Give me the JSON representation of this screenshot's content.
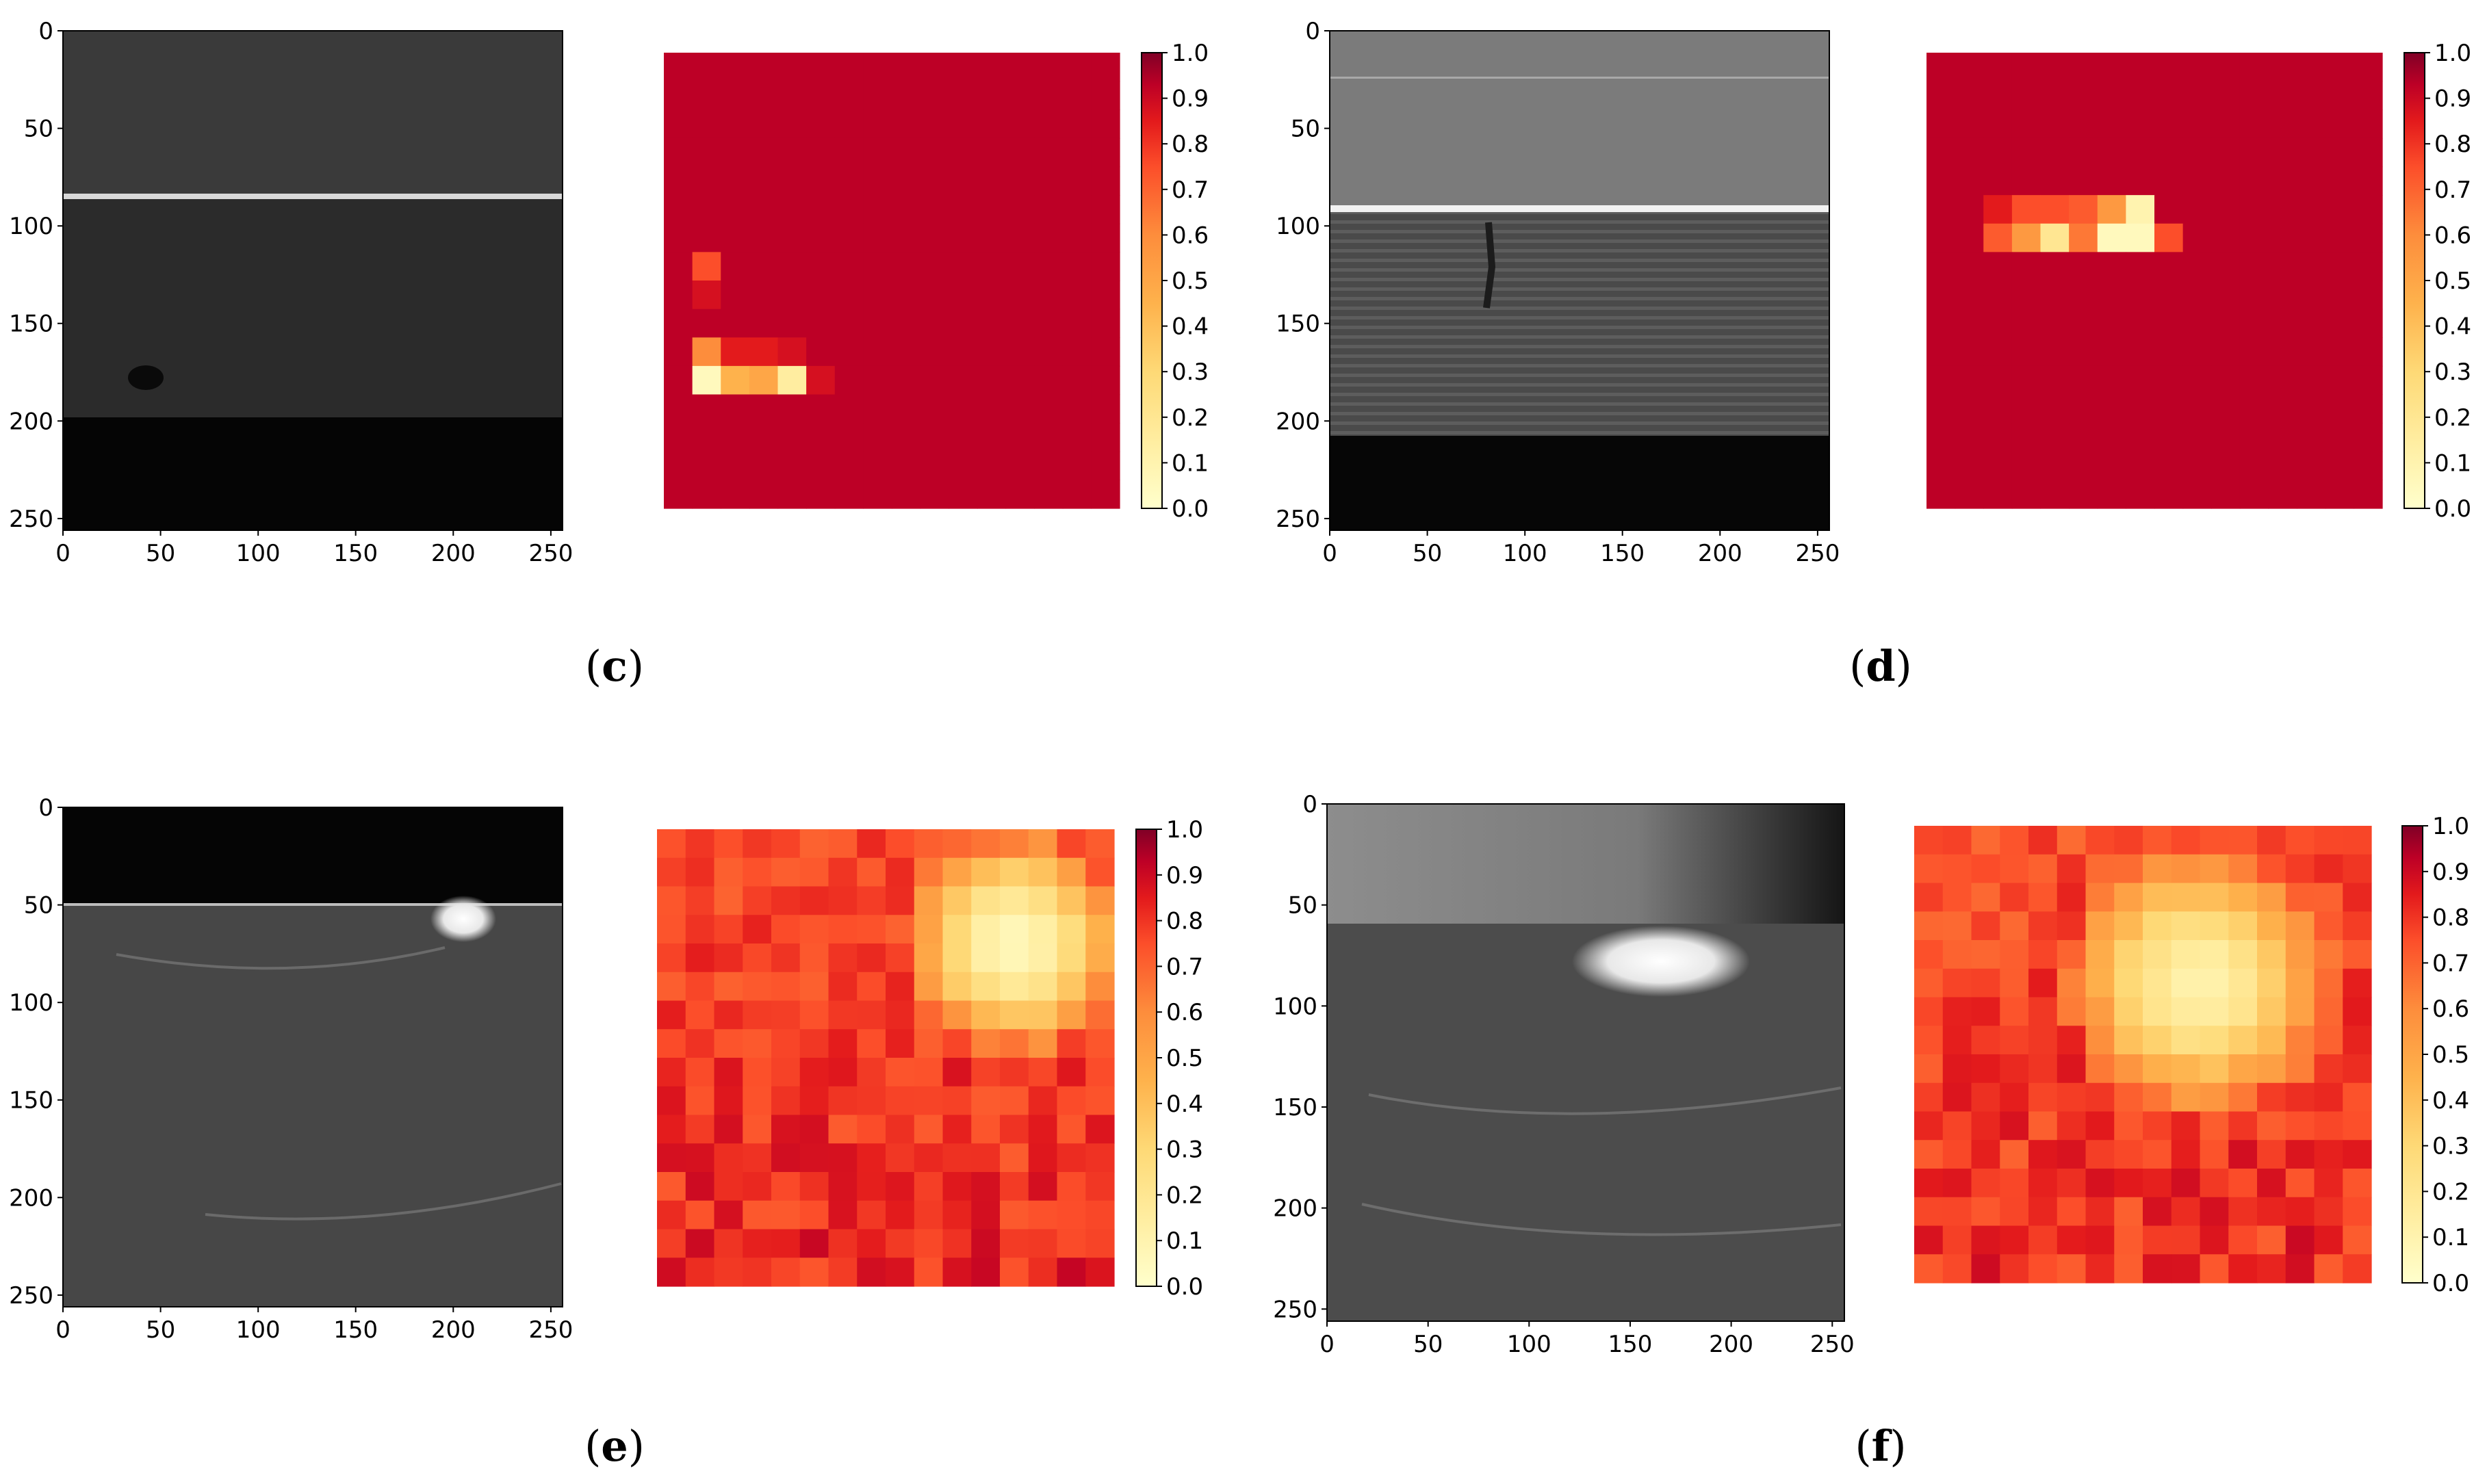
{
  "panels": [
    {
      "label": "c",
      "image": {
        "x_ticks": [
          "0",
          "50",
          "100",
          "150",
          "200",
          "250"
        ],
        "y_ticks": [
          "0",
          "50",
          "100",
          "150",
          "200",
          "250"
        ],
        "xlim": [
          0,
          256
        ],
        "ylim": [
          256,
          0
        ],
        "bright_line_y": 85,
        "dark_region_from_y": 198,
        "blob": {
          "x": 42,
          "y": 178
        }
      },
      "heatmap": {
        "grid": 16,
        "background": 0.93,
        "cells": [
          [
            1,
            7,
            0.75
          ],
          [
            1,
            8,
            0.88
          ],
          [
            1,
            10,
            0.6
          ],
          [
            2,
            10,
            0.85
          ],
          [
            3,
            10,
            0.85
          ],
          [
            4,
            10,
            0.88
          ],
          [
            1,
            11,
            0.05
          ],
          [
            2,
            11,
            0.45
          ],
          [
            3,
            11,
            0.5
          ],
          [
            4,
            11,
            0.15
          ],
          [
            5,
            11,
            0.88
          ]
        ]
      },
      "colorbar": {
        "ticks": [
          "1.0",
          "0.9",
          "0.8",
          "0.7",
          "0.6",
          "0.5",
          "0.4",
          "0.3",
          "0.2",
          "0.1",
          "0.0"
        ],
        "range": [
          0,
          1
        ]
      }
    },
    {
      "label": "d",
      "image": {
        "x_ticks": [
          "0",
          "50",
          "100",
          "150",
          "200",
          "250"
        ],
        "y_ticks": [
          "0",
          "50",
          "100",
          "150",
          "200",
          "250"
        ],
        "xlim": [
          0,
          256
        ],
        "ylim": [
          256,
          0
        ],
        "bright_line_y": 92,
        "dark_region_from_y": 208
      },
      "heatmap": {
        "grid": 16,
        "background": 0.93,
        "cells": [
          [
            2,
            5,
            0.85
          ],
          [
            3,
            5,
            0.75
          ],
          [
            4,
            5,
            0.75
          ],
          [
            5,
            5,
            0.72
          ],
          [
            6,
            5,
            0.55
          ],
          [
            7,
            5,
            0.1
          ],
          [
            2,
            6,
            0.72
          ],
          [
            3,
            6,
            0.55
          ],
          [
            4,
            6,
            0.2
          ],
          [
            5,
            6,
            0.65
          ],
          [
            6,
            6,
            0.05
          ],
          [
            7,
            6,
            0.05
          ],
          [
            8,
            6,
            0.75
          ]
        ]
      },
      "colorbar": {
        "ticks": [
          "1.0",
          "0.9",
          "0.8",
          "0.7",
          "0.6",
          "0.5",
          "0.4",
          "0.3",
          "0.2",
          "0.1",
          "0.0"
        ],
        "range": [
          0,
          1
        ]
      }
    },
    {
      "label": "e",
      "image": {
        "x_ticks": [
          "0",
          "50",
          "100",
          "150",
          "200",
          "250"
        ],
        "y_ticks": [
          "0",
          "50",
          "100",
          "150",
          "200",
          "250"
        ],
        "xlim": [
          0,
          256
        ],
        "ylim": [
          256,
          0
        ],
        "dark_top_until_y": 50,
        "flash": {
          "x": 205,
          "y": 58
        }
      },
      "heatmap": {
        "grid": 16,
        "background_min": 0.62,
        "background_max": 0.92,
        "hotspot": {
          "col": 12.0,
          "row": 3.5,
          "radius": 4.2,
          "min": 0.05
        }
      },
      "colorbar": {
        "ticks": [
          "1.0",
          "0.9",
          "0.8",
          "0.7",
          "0.6",
          "0.5",
          "0.4",
          "0.3",
          "0.2",
          "0.1",
          "0.0"
        ],
        "range": [
          0,
          1
        ]
      }
    },
    {
      "label": "f",
      "image": {
        "x_ticks": [
          "0",
          "50",
          "100",
          "150",
          "200",
          "250"
        ],
        "y_ticks": [
          "0",
          "50",
          "100",
          "150",
          "200",
          "250"
        ],
        "xlim": [
          0,
          256
        ],
        "ylim": [
          256,
          0
        ],
        "gray_top_until_y": 60,
        "flash": {
          "x": 165,
          "y": 78
        }
      },
      "heatmap": {
        "grid": 16,
        "background_min": 0.6,
        "background_max": 0.92,
        "hotspot": {
          "col": 9.5,
          "row": 5.0,
          "radius": 5.0,
          "min": 0.1
        }
      },
      "colorbar": {
        "ticks": [
          "1.0",
          "0.9",
          "0.8",
          "0.7",
          "0.6",
          "0.5",
          "0.4",
          "0.3",
          "0.2",
          "0.1",
          "0.0"
        ],
        "range": [
          0,
          1
        ]
      }
    }
  ],
  "chart_data": [
    {
      "type": "heatmap",
      "panel": "c",
      "grid": [
        16,
        16
      ],
      "range": [
        0,
        1
      ],
      "background": 0.93,
      "low_value_cells": "rows 10–11, cols 1–5"
    },
    {
      "type": "heatmap",
      "panel": "d",
      "grid": [
        16,
        16
      ],
      "range": [
        0,
        1
      ],
      "background": 0.93,
      "low_value_cells": "rows 5–6, cols 2–8"
    },
    {
      "type": "heatmap",
      "panel": "e",
      "grid": [
        16,
        16
      ],
      "range": [
        0,
        1
      ],
      "hotspot_min": 0.05
    },
    {
      "type": "heatmap",
      "panel": "f",
      "grid": [
        16,
        16
      ],
      "range": [
        0,
        1
      ],
      "hotspot_min": 0.1
    }
  ]
}
